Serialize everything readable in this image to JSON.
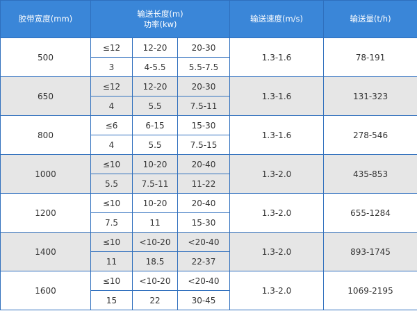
{
  "table": {
    "header": {
      "width": "胶带宽度(mm)",
      "length": "输送长度(m)",
      "power": "功率(kw)",
      "speed": "输送速度(m/s)",
      "capacity": "输送量(t/h)"
    },
    "rows": [
      {
        "width": "500",
        "length": [
          "≤12",
          "12-20",
          "20-30"
        ],
        "power": [
          "3",
          "4-5.5",
          "5.5-7.5"
        ],
        "speed": "1.3-1.6",
        "capacity": "78-191"
      },
      {
        "width": "650",
        "length": [
          "≤12",
          "12-20",
          "20-30"
        ],
        "power": [
          "4",
          "5.5",
          "7.5-11"
        ],
        "speed": "1.3-1.6",
        "capacity": "131-323"
      },
      {
        "width": "800",
        "length": [
          "≤6",
          "6-15",
          "15-30"
        ],
        "power": [
          "4",
          "5.5",
          "7.5-15"
        ],
        "speed": "1.3-1.6",
        "capacity": "278-546"
      },
      {
        "width": "1000",
        "length": [
          "≤10",
          "10-20",
          "20-40"
        ],
        "power": [
          "5.5",
          "7.5-11",
          "11-22"
        ],
        "speed": "1.3-2.0",
        "capacity": "435-853"
      },
      {
        "width": "1200",
        "length": [
          "≤10",
          "10-20",
          "20-40"
        ],
        "power": [
          "7.5",
          "11",
          "15-30"
        ],
        "speed": "1.3-2.0",
        "capacity": "655-1284"
      },
      {
        "width": "1400",
        "length": [
          "≤10",
          "<10-20",
          "<20-40"
        ],
        "power": [
          "11",
          "18.5",
          "22-37"
        ],
        "speed": "1.3-2.0",
        "capacity": "893-1745"
      },
      {
        "width": "1600",
        "length": [
          "≤10",
          "<10-20",
          "<20-40"
        ],
        "power": [
          "15",
          "22",
          "30-45"
        ],
        "speed": "1.3-2.0",
        "capacity": "1069-2195"
      }
    ]
  }
}
